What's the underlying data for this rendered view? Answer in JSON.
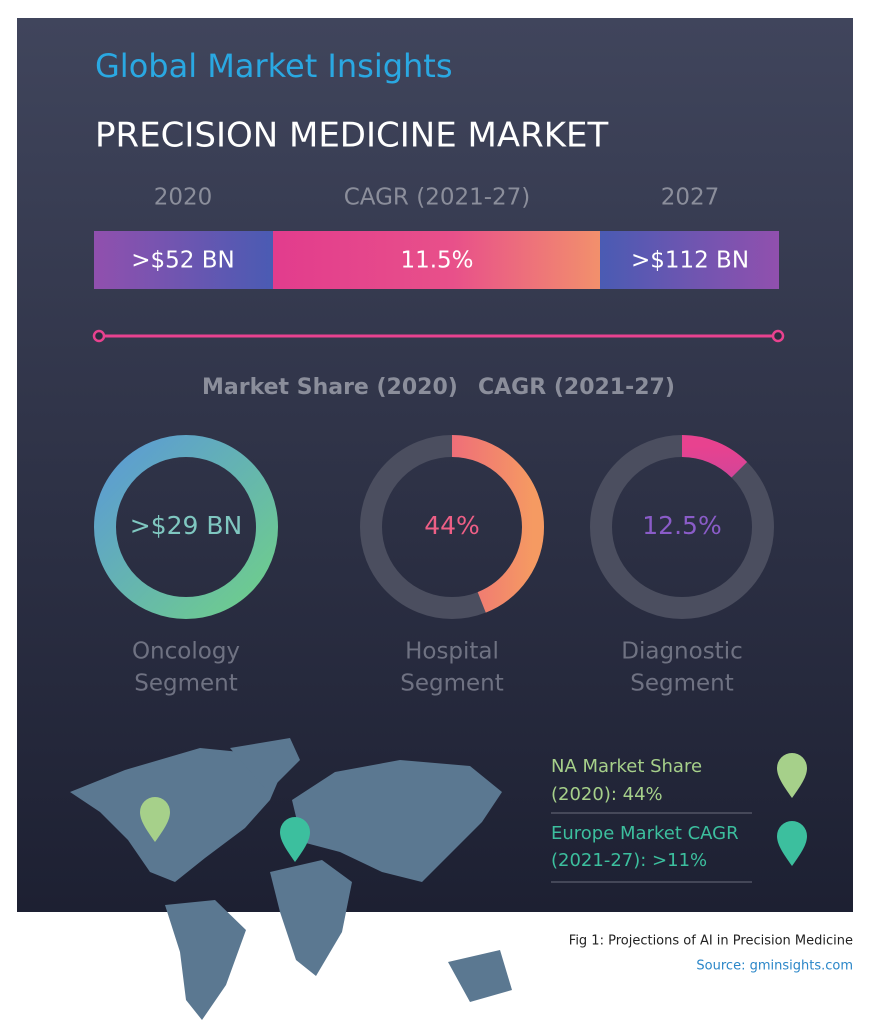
{
  "header": {
    "brand": "Global Market Insights",
    "title": "PRECISION MEDICINE MARKET"
  },
  "market_bar": {
    "columns": [
      {
        "heading": "2020",
        "value": ">$52 BN"
      },
      {
        "heading": "CAGR (2021-27)",
        "value": "11.5%"
      },
      {
        "heading": "2027",
        "value": ">$112 BN"
      }
    ]
  },
  "segments": {
    "headings": [
      "Market Share (2020)",
      "CAGR (2021-27)"
    ],
    "items": [
      {
        "value_label": ">$29 BN",
        "label": [
          "Oncology",
          "Segment"
        ]
      },
      {
        "value_label": "44%",
        "value": 44,
        "label": [
          "Hospital",
          "Segment"
        ]
      },
      {
        "value_label": "12.5%",
        "value": 12.5,
        "label": [
          "Diagnostic",
          "Segment"
        ]
      }
    ]
  },
  "regions": [
    {
      "lines": [
        "NA Market Share",
        "(2020): 44%"
      ]
    },
    {
      "lines": [
        "Europe Market CAGR",
        "(2021-27): >11%"
      ]
    }
  ],
  "footer": {
    "caption": "Fig 1: Projections of AI in Precision Medicine",
    "source": "Source: gminsights.com"
  }
}
